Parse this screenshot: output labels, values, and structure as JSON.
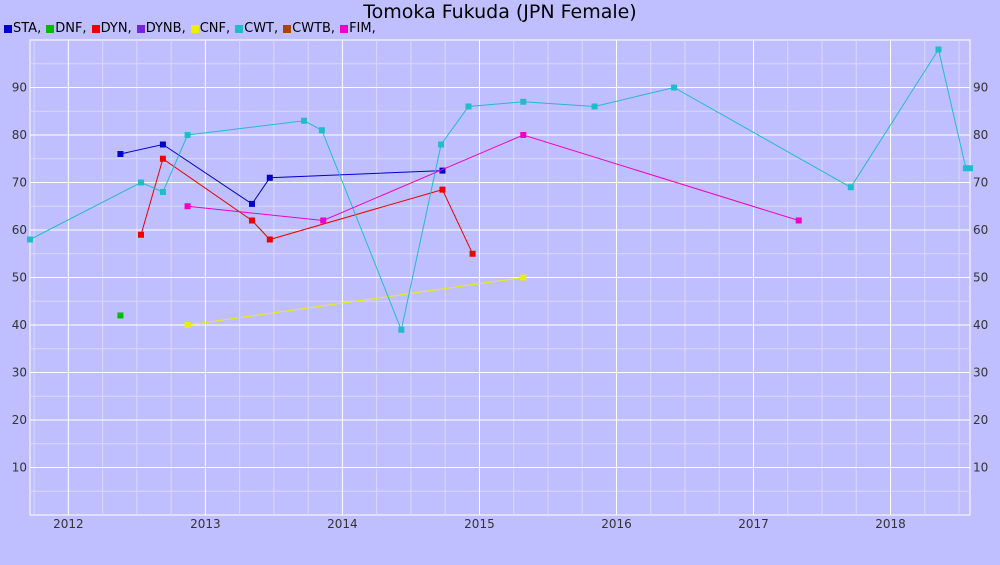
{
  "chart_data": {
    "type": "line",
    "title": "Tomoka Fukuda (JPN Female)",
    "xlabel": "",
    "ylabel": "",
    "xlim": [
      2011.72,
      2018.58
    ],
    "ylim": [
      0,
      100
    ],
    "x_ticks": [
      "2012",
      "2013",
      "2014",
      "2015",
      "2016",
      "2017",
      "2018"
    ],
    "y_ticks": [
      "10",
      "20",
      "30",
      "40",
      "50",
      "60",
      "70",
      "80",
      "90"
    ],
    "grid": true,
    "legend_position": "top-left",
    "series": [
      {
        "name": "STA",
        "color": "#0000cc",
        "points": [
          [
            2012.38,
            76
          ],
          [
            2012.69,
            78
          ],
          [
            2013.34,
            65.5
          ],
          [
            2013.47,
            71
          ],
          [
            2014.73,
            72.5
          ]
        ]
      },
      {
        "name": "DNF",
        "color": "#00bb00",
        "points": [
          [
            2012.38,
            42
          ]
        ]
      },
      {
        "name": "DYN",
        "color": "#ee0000",
        "points": [
          [
            2012.53,
            59
          ],
          [
            2012.69,
            75
          ],
          [
            2013.34,
            62
          ],
          [
            2013.47,
            58
          ],
          [
            2014.73,
            68.5
          ],
          [
            2014.95,
            55
          ]
        ]
      },
      {
        "name": "DYNB",
        "color": "#7722dd",
        "points": []
      },
      {
        "name": "CNF",
        "color": "#eeee00",
        "points": [
          [
            2012.87,
            40
          ],
          [
            2015.32,
            50
          ]
        ]
      },
      {
        "name": "CWT",
        "color": "#22bbcc",
        "points": [
          [
            2011.72,
            58
          ],
          [
            2012.53,
            70
          ],
          [
            2012.69,
            68
          ],
          [
            2012.87,
            80
          ],
          [
            2013.72,
            83
          ],
          [
            2013.85,
            81
          ],
          [
            2014.43,
            39
          ],
          [
            2014.72,
            78
          ],
          [
            2014.92,
            86
          ],
          [
            2015.32,
            87
          ],
          [
            2015.84,
            86
          ],
          [
            2016.42,
            90
          ],
          [
            2017.71,
            69
          ],
          [
            2018.35,
            98
          ],
          [
            2018.55,
            73
          ],
          [
            2018.58,
            73
          ]
        ]
      },
      {
        "name": "CWTB",
        "color": "#aa4400",
        "points": []
      },
      {
        "name": "FIM",
        "color": "#ee00cc",
        "points": [
          [
            2012.87,
            65
          ],
          [
            2013.86,
            62
          ],
          [
            2015.32,
            80
          ],
          [
            2017.33,
            62
          ]
        ]
      }
    ]
  }
}
